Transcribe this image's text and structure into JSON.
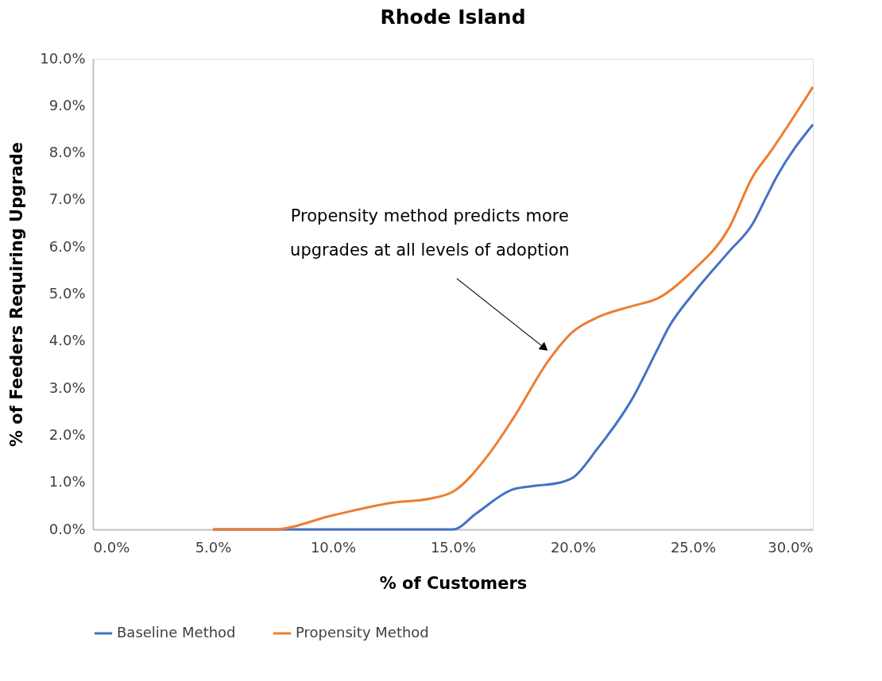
{
  "chart_data": {
    "type": "line",
    "title": "Rhode Island",
    "xlabel": "% of Customers",
    "ylabel": "% of Feeders Requiring Upgrade",
    "xlim": [
      0,
      30
    ],
    "ylim": [
      0,
      10
    ],
    "xticks": [
      {
        "value": 0,
        "label": "0.0%"
      },
      {
        "value": 5,
        "label": "5.0%"
      },
      {
        "value": 10,
        "label": "10.0%"
      },
      {
        "value": 15,
        "label": "15.0%"
      },
      {
        "value": 20,
        "label": "20.0%"
      },
      {
        "value": 25,
        "label": "25.0%"
      },
      {
        "value": 30,
        "label": "30.0%"
      }
    ],
    "yticks": [
      {
        "value": 0,
        "label": "0.0%"
      },
      {
        "value": 1,
        "label": "1.0%"
      },
      {
        "value": 2,
        "label": "2.0%"
      },
      {
        "value": 3,
        "label": "3.0%"
      },
      {
        "value": 4,
        "label": "4.0%"
      },
      {
        "value": 5,
        "label": "5.0%"
      },
      {
        "value": 6,
        "label": "6.0%"
      },
      {
        "value": 7,
        "label": "7.0%"
      },
      {
        "value": 8,
        "label": "8.0%"
      },
      {
        "value": 9,
        "label": "9.0%"
      },
      {
        "value": 10,
        "label": "10.0%"
      }
    ],
    "grid": false,
    "legend": "bottom",
    "marker": "none",
    "line_style": "solid",
    "series": [
      {
        "name": "Baseline Method",
        "color": "#4472c4",
        "x": [
          5,
          7.5,
          10,
          12.5,
          15,
          16,
          17.5,
          18.5,
          19.5,
          20,
          21,
          22.5,
          23.5,
          24,
          25,
          26.5,
          27.5,
          28,
          28.5,
          30
        ],
        "values": [
          0,
          0,
          0,
          0,
          0,
          0.35,
          0.85,
          0.93,
          1.0,
          1.1,
          1.7,
          2.8,
          3.8,
          4.3,
          5.0,
          5.9,
          6.5,
          7.0,
          7.5,
          8.6
        ]
      },
      {
        "name": "Propensity Method",
        "color": "#ed7d31",
        "x": [
          5,
          7.5,
          10,
          12.5,
          14,
          15,
          16.5,
          17.5,
          19,
          20,
          21,
          22.5,
          23.5,
          25,
          26.5,
          27.5,
          28.2,
          30
        ],
        "values": [
          0,
          0,
          0.3,
          0.57,
          0.65,
          0.8,
          1.6,
          2.35,
          3.6,
          4.2,
          4.5,
          4.75,
          4.9,
          5.5,
          6.4,
          7.5,
          8.0,
          9.4
        ]
      }
    ],
    "annotations": [
      {
        "text": "Propensity method predicts more\nupgrades at all levels of adoption",
        "x": 19,
        "y": 3.78
      }
    ]
  }
}
